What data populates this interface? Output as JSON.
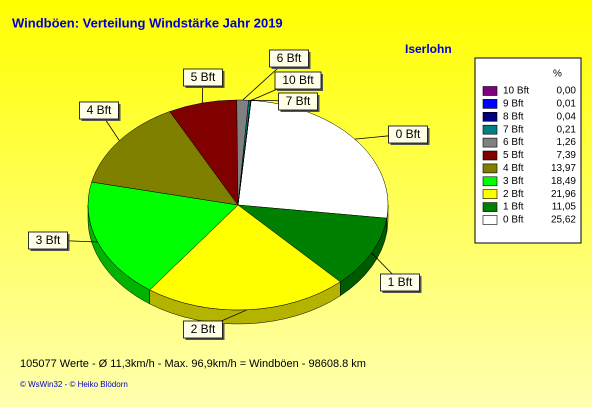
{
  "chart_data": {
    "type": "pie",
    "title": "Windböen: Verteilung Windstärke  Jahr 2019",
    "subtitle": "Iserlohn",
    "legend_header": "%",
    "categories": [
      "0 Bft",
      "1 Bft",
      "2 Bft",
      "3 Bft",
      "4 Bft",
      "5 Bft",
      "6 Bft",
      "7 Bft",
      "8 Bft",
      "9 Bft",
      "10 Bft"
    ],
    "values": [
      25.62,
      11.05,
      21.96,
      18.49,
      13.97,
      7.39,
      1.26,
      0.21,
      0.04,
      0.01,
      0.0
    ],
    "value_labels": [
      "25,62",
      "11,05",
      "21,96",
      "18,49",
      "13,97",
      "7,39",
      "1,26",
      "0,21",
      "0,04",
      "0,01",
      "0,00"
    ],
    "colors": [
      "#ffffff",
      "#008000",
      "#ffff00",
      "#00ff00",
      "#808000",
      "#800000",
      "#808080",
      "#008080",
      "#000080",
      "#0000ff",
      "#800080"
    ],
    "footer": "105077 Werte   -   Ø 11,3km/h   -   Max. 96,9km/h = Windböen   -    98608.8 km",
    "credits": "© WsWin32  -  © Heiko Blödorn"
  }
}
